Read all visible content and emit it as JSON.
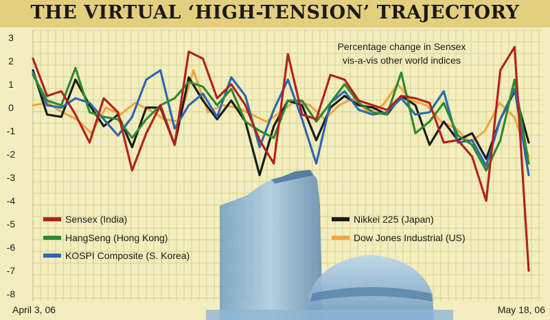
{
  "chart_data": {
    "type": "line",
    "title": "THE VIRTUAL ‘HIGH-TENSION’ TRAJECTORY",
    "subtitle_lines": [
      "Percentage change in Sensex",
      "vis-a-vis other world indices"
    ],
    "x_start_label": "April 3, 06",
    "x_end_label": "May 18, 06",
    "ylim": [
      -8,
      3
    ],
    "yticks": [
      3,
      2,
      1,
      0,
      -1,
      -2,
      -3,
      -4,
      -5,
      -6,
      -7,
      -8
    ],
    "grid": true,
    "legend_placement": "bottom",
    "series": [
      {
        "name": "Sensex (India)",
        "color": "#b3221e",
        "values": [
          2.1,
          0.5,
          0.7,
          -0.3,
          -1.5,
          0.4,
          -0.2,
          -2.7,
          -1.1,
          0.1,
          -1.6,
          2.4,
          2.1,
          0.4,
          1.0,
          0.1,
          -1.4,
          -2.4,
          2.3,
          -0.3,
          -0.5,
          1.4,
          1.2,
          0.3,
          0.1,
          -0.1,
          0.5,
          0.4,
          0.2,
          -1.5,
          -1.4,
          -2.1,
          -4.0,
          1.6,
          2.6,
          -7.0
        ]
      },
      {
        "name": "HangSeng (Hong Kong)",
        "color": "#2e8a2e",
        "values": [
          1.4,
          0.3,
          0.1,
          1.7,
          -0.2,
          -0.4,
          -0.5,
          -1.3,
          -0.5,
          0.1,
          0.4,
          1.1,
          0.9,
          0.1,
          0.8,
          -0.6,
          -1.0,
          -1.3,
          0.3,
          0.3,
          -0.6,
          0.2,
          1.0,
          0.2,
          -0.2,
          -0.3,
          1.5,
          -1.1,
          -0.6,
          0.2,
          -1.2,
          -1.6,
          -2.7,
          -1.4,
          1.2,
          -2.4
        ]
      },
      {
        "name": "KOSPI Composite (S. Korea)",
        "color": "#2c68b4",
        "values": [
          1.5,
          0.1,
          0.0,
          0.4,
          0.2,
          -0.5,
          -1.2,
          -0.4,
          1.2,
          1.6,
          -0.9,
          0.1,
          0.6,
          -0.4,
          1.3,
          0.5,
          -1.7,
          -0.1,
          1.2,
          -0.5,
          -2.4,
          0.2,
          0.7,
          -0.1,
          -0.3,
          -0.2,
          0.4,
          -0.3,
          -0.2,
          0.7,
          -1.5,
          -1.4,
          -2.5,
          -0.5,
          0.8,
          -2.9
        ]
      },
      {
        "name": "Nikkei 225 (Japan)",
        "color": "#1b1b1b",
        "values": [
          1.6,
          -0.3,
          -0.4,
          1.2,
          0.1,
          -0.8,
          -0.3,
          -1.7,
          0.0,
          0.0,
          -1.6,
          1.3,
          0.3,
          -0.5,
          0.3,
          -0.6,
          -2.9,
          -0.8,
          0.3,
          0.1,
          -1.4,
          0.0,
          0.5,
          0.1,
          0.0,
          -0.3,
          0.5,
          0.1,
          -1.6,
          -0.6,
          -1.4,
          -1.1,
          -2.2,
          -0.5,
          0.7,
          -1.5
        ]
      },
      {
        "name": "Dow Jones Industrial (US)",
        "color": "#f0a640",
        "values": [
          0.1,
          0.2,
          -0.2,
          -0.5,
          -1.1,
          0.0,
          -0.3,
          0.2,
          -0.1,
          -0.5,
          -0.6,
          1.6,
          -0.2,
          0.1,
          0.0,
          -0.3,
          -0.6,
          -0.2,
          0.3,
          0.1,
          -0.5,
          0.1,
          0.4,
          -0.2,
          0.1,
          1.0,
          0.3,
          0.1,
          -0.6,
          -0.9,
          -1.5,
          -1.0,
          0.2,
          -0.4,
          -2.1
        ]
      }
    ]
  }
}
